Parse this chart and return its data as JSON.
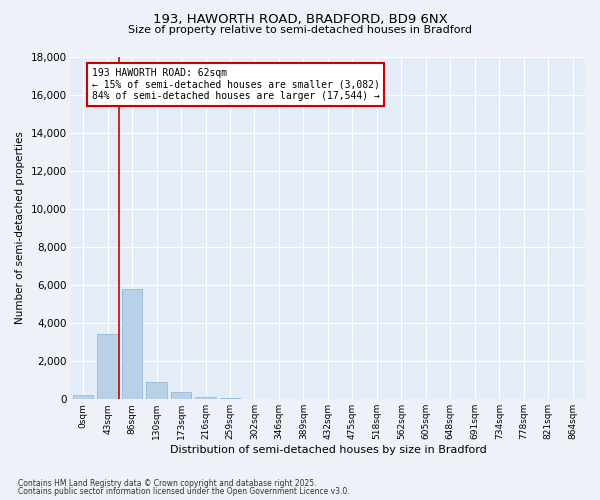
{
  "title_line1": "193, HAWORTH ROAD, BRADFORD, BD9 6NX",
  "title_line2": "Size of property relative to semi-detached houses in Bradford",
  "xlabel": "Distribution of semi-detached houses by size in Bradford",
  "ylabel": "Number of semi-detached properties",
  "categories": [
    "0sqm",
    "43sqm",
    "86sqm",
    "130sqm",
    "173sqm",
    "216sqm",
    "259sqm",
    "302sqm",
    "346sqm",
    "389sqm",
    "432sqm",
    "475sqm",
    "518sqm",
    "562sqm",
    "605sqm",
    "648sqm",
    "691sqm",
    "734sqm",
    "778sqm",
    "821sqm",
    "864sqm"
  ],
  "values": [
    200,
    3400,
    5800,
    900,
    350,
    120,
    60,
    10,
    0,
    0,
    0,
    0,
    0,
    0,
    0,
    0,
    0,
    0,
    0,
    0,
    0
  ],
  "bar_color": "#b8d0e8",
  "bar_edgecolor": "#8ab4d4",
  "vline_x": 1.45,
  "vline_color": "#cc0000",
  "annotation_title": "193 HAWORTH ROAD: 62sqm",
  "annotation_line1": "← 15% of semi-detached houses are smaller (3,082)",
  "annotation_line2": "84% of semi-detached houses are larger (17,544) →",
  "annotation_box_color": "#cc0000",
  "ylim": [
    0,
    18000
  ],
  "yticks": [
    0,
    2000,
    4000,
    6000,
    8000,
    10000,
    12000,
    14000,
    16000,
    18000
  ],
  "footnote_line1": "Contains HM Land Registry data © Crown copyright and database right 2025.",
  "footnote_line2": "Contains public sector information licensed under the Open Government Licence v3.0.",
  "bg_color": "#eef2f8",
  "plot_bg_color": "#e4ecf7"
}
